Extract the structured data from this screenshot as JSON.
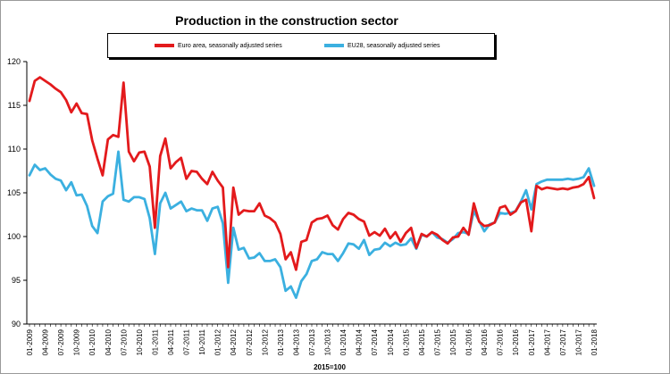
{
  "chart_data": {
    "type": "line",
    "title": "Production in the construction sector",
    "xlabel": "2015=100",
    "ylabel": "",
    "ylim": [
      90,
      120
    ],
    "yticks": [
      90,
      95,
      100,
      105,
      110,
      115,
      120
    ],
    "grid": false,
    "legend_position": "top",
    "x_tick_labels": [
      "01-2009",
      "04-2009",
      "07-2009",
      "10-2009",
      "01-2010",
      "04-2010",
      "07-2010",
      "10-2010",
      "01-2011",
      "04-2011",
      "07-2011",
      "10-2011",
      "01-2012",
      "04-2012",
      "07-2012",
      "10-2012",
      "01-2013",
      "04-2013",
      "07-2013",
      "10-2013",
      "01-2014",
      "04-2014",
      "07-2014",
      "10-2014",
      "01-2015",
      "04-2015",
      "07-2015",
      "10-2015",
      "01-2016",
      "04-2016",
      "07-2016",
      "10-2016",
      "01-2017",
      "04-2017",
      "07-2017",
      "10-2017",
      "01-2018"
    ],
    "series": [
      {
        "name": "Euro area, seasonally adjusted series",
        "color": "#e31a1c",
        "values": [
          115.5,
          117.8,
          118.2,
          117.8,
          117.4,
          116.9,
          116.5,
          115.6,
          114.2,
          115.2,
          114.1,
          114.0,
          111.0,
          108.9,
          107.0,
          111.1,
          111.6,
          111.4,
          117.6,
          109.7,
          108.6,
          109.6,
          109.7,
          108.0,
          101.0,
          109.2,
          111.2,
          107.8,
          108.5,
          109.0,
          106.6,
          107.5,
          107.4,
          106.6,
          106.0,
          107.4,
          106.4,
          105.6,
          96.5,
          105.6,
          102.5,
          103.0,
          102.9,
          102.9,
          103.8,
          102.4,
          102.1,
          101.6,
          100.3,
          97.4,
          98.2,
          96.2,
          99.4,
          99.6,
          101.6,
          102.0,
          102.1,
          102.4,
          101.3,
          100.8,
          102.0,
          102.7,
          102.5,
          102.0,
          101.7,
          100.1,
          100.5,
          100.1,
          100.9,
          99.8,
          100.5,
          99.4,
          100.4,
          101.0,
          98.7,
          100.3,
          100.0,
          100.5,
          100.2,
          99.6,
          99.2,
          99.9,
          100.0,
          101.0,
          100.2,
          103.8,
          101.7,
          101.2,
          101.3,
          101.6,
          103.3,
          103.5,
          102.5,
          102.9,
          103.9,
          104.2,
          100.6,
          105.8,
          105.4,
          105.6,
          105.5,
          105.4,
          105.5,
          105.4,
          105.6,
          105.7,
          106.0,
          106.8,
          104.4
        ]
      },
      {
        "name": "EU28, seasonally adjusted series",
        "color": "#3bb0e0",
        "values": [
          107.0,
          108.2,
          107.6,
          107.8,
          107.1,
          106.6,
          106.4,
          105.3,
          106.2,
          104.7,
          104.8,
          103.5,
          101.2,
          100.4,
          104.0,
          104.6,
          104.9,
          109.7,
          104.2,
          104.0,
          104.5,
          104.5,
          104.3,
          102.1,
          98.0,
          103.8,
          105.0,
          103.2,
          103.6,
          104.0,
          102.9,
          103.2,
          103.0,
          103.0,
          101.8,
          103.2,
          103.4,
          101.5,
          94.7,
          101.0,
          98.5,
          98.7,
          97.5,
          97.6,
          98.1,
          97.2,
          97.2,
          97.4,
          96.5,
          93.8,
          94.3,
          93.0,
          94.9,
          95.7,
          97.2,
          97.4,
          98.2,
          98.0,
          98.0,
          97.2,
          98.1,
          99.2,
          99.1,
          98.6,
          99.6,
          97.9,
          98.5,
          98.6,
          99.3,
          98.9,
          99.3,
          99.0,
          99.1,
          99.8,
          98.6,
          100.2,
          100.0,
          100.5,
          99.9,
          99.7,
          99.3,
          99.7,
          100.4,
          100.5,
          100.3,
          102.9,
          101.8,
          100.6,
          101.4,
          101.6,
          102.7,
          102.6,
          102.7,
          102.9,
          104.0,
          105.3,
          103.1,
          106.0,
          106.3,
          106.5,
          106.5,
          106.5,
          106.5,
          106.6,
          106.5,
          106.6,
          106.8,
          107.8,
          105.8
        ]
      }
    ]
  }
}
